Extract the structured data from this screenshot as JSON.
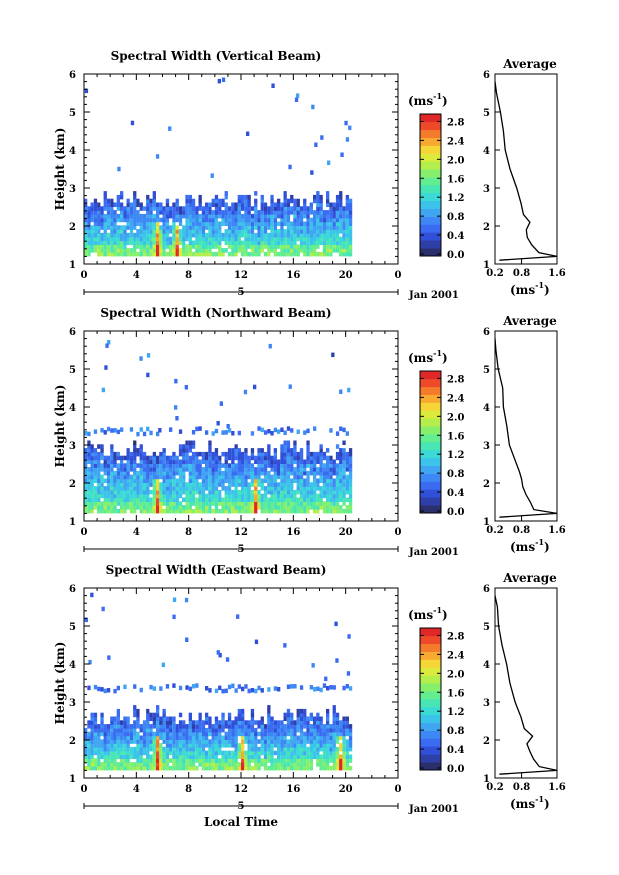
{
  "colorbar": {
    "unit": "(ms",
    "unit_sup": "-1",
    "unit_close": ")",
    "ticks": [
      "0.0",
      "0.4",
      "0.8",
      "1.2",
      "1.6",
      "2.0",
      "2.4",
      "2.8"
    ],
    "colors": [
      "#2a2f6e",
      "#2f3fa8",
      "#3150d8",
      "#3a6bf0",
      "#3d88f5",
      "#40a6f2",
      "#3cc3ea",
      "#3cdad6",
      "#48e6b4",
      "#62ed90",
      "#86f06c",
      "#b4ee4c",
      "#dcea3c",
      "#f6d636",
      "#f7a930",
      "#f47a2c",
      "#ee4a2a",
      "#e02828"
    ]
  },
  "panels": [
    {
      "title": "Spectral Width (Vertical Beam)",
      "average_title": "Average",
      "beam": "vertical",
      "date_label": "Jan 2001"
    },
    {
      "title": "Spectral Width (Northward Beam)",
      "average_title": "Average",
      "beam": "northward",
      "date_label": "Jan 2001"
    },
    {
      "title": "Spectral Width (Eastward Beam)",
      "average_title": "Average",
      "beam": "eastward",
      "date_label": "Jan 2001"
    }
  ],
  "axes": {
    "ylabel": "Height (km)",
    "yticks": [
      "1",
      "2",
      "3",
      "4",
      "5",
      "6"
    ],
    "xticks": [
      "0",
      "4",
      "8",
      "12",
      "16",
      "20",
      "0"
    ],
    "day_label": "5",
    "avg_xticks": [
      "0.2",
      "0.8",
      "1.6"
    ],
    "avg_xlabel": "(ms",
    "avg_xlabel_sup": "-1",
    "avg_xlabel_close": ")",
    "bottom_xlabel": "Local Time"
  },
  "chart_data": [
    {
      "type": "heatmap",
      "title": "Spectral Width (Vertical Beam)",
      "xlabel": "Local Time",
      "ylabel": "Height (km)",
      "xlim": [
        0,
        24
      ],
      "ylim": [
        1,
        6
      ],
      "colorbar_range": [
        0.0,
        3.0
      ],
      "description_of_pattern": {
        "dense_layer_top_km": 2.6,
        "dense_layer_bottom_km": 1.2,
        "data_end_hour": 20.5,
        "peak_hours": [
          5.5,
          7.0
        ],
        "peak_value": 3.0
      },
      "average_profile": {
        "title": "Average",
        "xlim": [
          0.2,
          1.6
        ],
        "heights": [
          1.1,
          1.2,
          1.3,
          1.5,
          1.7,
          1.9,
          2.1,
          2.3,
          2.6,
          3.0,
          3.5,
          4.0,
          4.5,
          5.0,
          5.5,
          5.8
        ],
        "values": [
          0.3,
          1.6,
          1.2,
          1.05,
          0.95,
          0.9,
          1.0,
          0.85,
          0.8,
          0.7,
          0.55,
          0.45,
          0.38,
          0.3,
          0.25,
          0.2
        ]
      }
    },
    {
      "type": "heatmap",
      "title": "Spectral Width (Northward Beam)",
      "xlabel": "Local Time",
      "ylabel": "Height (km)",
      "xlim": [
        0,
        24
      ],
      "ylim": [
        1,
        6
      ],
      "colorbar_range": [
        0.0,
        3.0
      ],
      "description_of_pattern": {
        "dense_layer_top_km": 2.8,
        "dense_layer_bottom_km": 1.2,
        "upper_layer_km": 3.3,
        "data_end_hour": 20.5,
        "peak_hours": [
          5.5,
          13.0
        ],
        "peak_value": 3.0
      },
      "average_profile": {
        "title": "Average",
        "xlim": [
          0.2,
          1.6
        ],
        "heights": [
          1.1,
          1.2,
          1.3,
          1.5,
          1.7,
          1.9,
          2.1,
          2.3,
          2.6,
          3.0,
          3.5,
          4.0,
          4.5,
          5.0,
          5.5,
          5.8
        ],
        "values": [
          0.3,
          1.6,
          1.1,
          1.0,
          0.9,
          0.85,
          0.8,
          0.75,
          0.65,
          0.55,
          0.45,
          0.4,
          0.35,
          0.28,
          0.22,
          0.2
        ]
      }
    },
    {
      "type": "heatmap",
      "title": "Spectral Width (Eastward Beam)",
      "xlabel": "Local Time",
      "ylabel": "Height (km)",
      "xlim": [
        0,
        24
      ],
      "ylim": [
        1,
        6
      ],
      "colorbar_range": [
        0.0,
        3.0
      ],
      "description_of_pattern": {
        "dense_layer_top_km": 2.6,
        "dense_layer_bottom_km": 1.2,
        "upper_layer_km": 3.3,
        "data_end_hour": 20.5,
        "peak_hours": [
          5.5,
          12.0,
          19.5
        ],
        "peak_value": 3.0
      },
      "average_profile": {
        "title": "Average",
        "xlim": [
          0.2,
          1.6
        ],
        "heights": [
          1.1,
          1.2,
          1.3,
          1.5,
          1.7,
          1.9,
          2.1,
          2.3,
          2.6,
          3.0,
          3.5,
          4.0,
          4.5,
          5.0,
          5.5,
          5.8
        ],
        "values": [
          0.3,
          1.6,
          1.2,
          1.05,
          1.0,
          0.9,
          1.05,
          0.85,
          0.8,
          0.65,
          0.55,
          0.45,
          0.38,
          0.3,
          0.25,
          0.2
        ]
      }
    }
  ]
}
